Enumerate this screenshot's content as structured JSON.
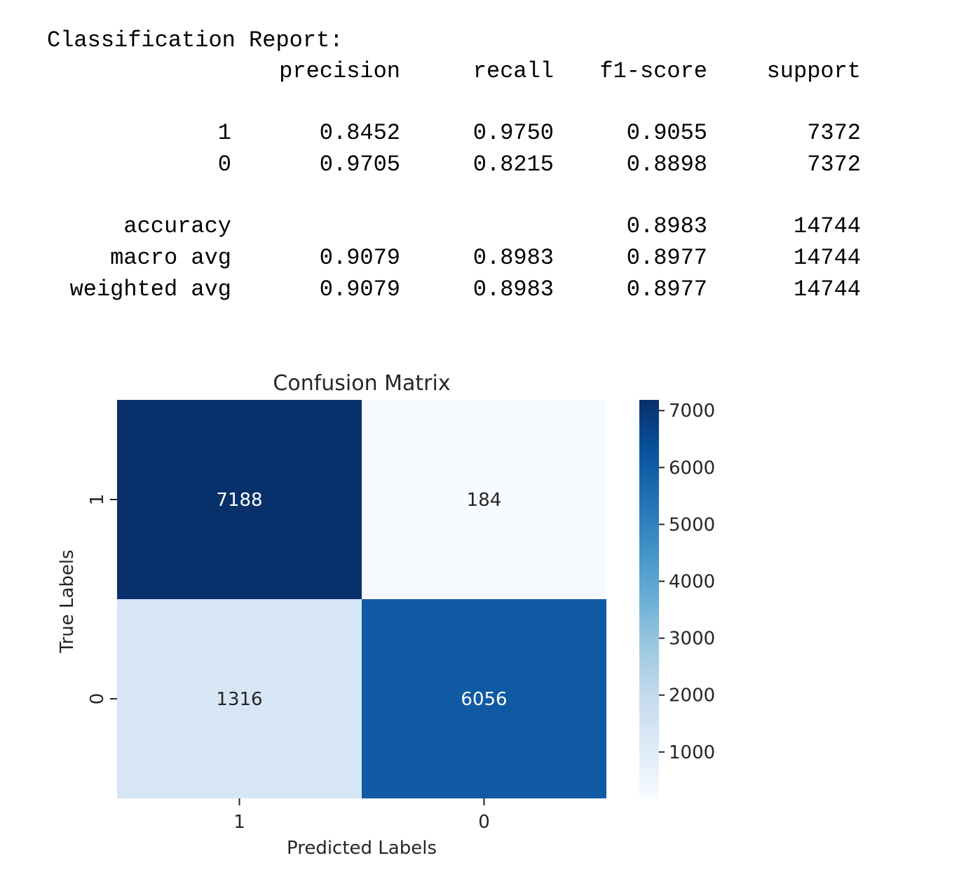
{
  "report": {
    "title": "Classification Report:",
    "headers": [
      "precision",
      "recall",
      "f1-score",
      "support"
    ],
    "rows": [
      {
        "label": "1",
        "precision": "0.8452",
        "recall": "0.9750",
        "f1": "0.9055",
        "support": "7372"
      },
      {
        "label": "0",
        "precision": "0.9705",
        "recall": "0.8215",
        "f1": "0.8898",
        "support": "7372"
      }
    ],
    "summary": [
      {
        "label": "accuracy",
        "precision": "",
        "recall": "",
        "f1": "0.8983",
        "support": "14744"
      },
      {
        "label": "macro avg",
        "precision": "0.9079",
        "recall": "0.8983",
        "f1": "0.8977",
        "support": "14744"
      },
      {
        "label": "weighted avg",
        "precision": "0.9079",
        "recall": "0.8983",
        "f1": "0.8977",
        "support": "14744"
      }
    ]
  },
  "chart_data": {
    "type": "heatmap",
    "title": "Confusion Matrix",
    "xlabel": "Predicted Labels",
    "ylabel": "True Labels",
    "x_categories": [
      "1",
      "0"
    ],
    "y_categories": [
      "1",
      "0"
    ],
    "values": [
      [
        7188,
        184
      ],
      [
        1316,
        6056
      ]
    ],
    "colormap": "Blues",
    "colorbar": {
      "min": 184,
      "max": 7188,
      "ticks": [
        1000,
        2000,
        3000,
        4000,
        5000,
        6000,
        7000
      ]
    },
    "colors": {
      "low": "#f7fbff",
      "high": "#08306b",
      "text_dark_cell": "#ffffff",
      "text_light_cell": "#262626"
    }
  }
}
